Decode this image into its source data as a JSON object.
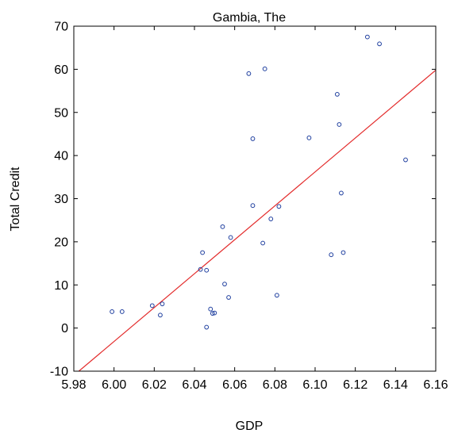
{
  "chart_data": {
    "type": "scatter",
    "title": "Gambia, The",
    "xlabel": "GDP",
    "ylabel": "Total Credit",
    "xlim": [
      5.98,
      6.16
    ],
    "ylim": [
      -10,
      70
    ],
    "x_ticks": [
      5.98,
      6.0,
      6.02,
      6.04,
      6.06,
      6.08,
      6.1,
      6.12,
      6.14,
      6.16
    ],
    "x_tick_labels": [
      "5.98",
      "6.00",
      "6.02",
      "6.04",
      "6.06",
      "6.08",
      "6.10",
      "6.12",
      "6.14",
      "6.16"
    ],
    "y_ticks": [
      -10,
      0,
      10,
      20,
      30,
      40,
      50,
      60,
      70
    ],
    "y_tick_labels": [
      "-10",
      "0",
      "10",
      "20",
      "30",
      "40",
      "50",
      "60",
      "70"
    ],
    "grid": false,
    "series": [
      {
        "type": "scatter",
        "color": "#1f3f9f",
        "x": [
          5.999,
          6.004,
          6.019,
          6.023,
          6.024,
          6.043,
          6.044,
          6.046,
          6.046,
          6.048,
          6.049,
          6.05,
          6.054,
          6.055,
          6.057,
          6.058,
          6.067,
          6.069,
          6.069,
          6.074,
          6.075,
          6.078,
          6.081,
          6.082,
          6.097,
          6.108,
          6.111,
          6.112,
          6.113,
          6.114,
          6.126,
          6.132,
          6.145
        ],
        "y": [
          3.8,
          3.8,
          5.2,
          3.0,
          5.6,
          13.6,
          17.5,
          13.4,
          0.2,
          4.4,
          3.4,
          3.5,
          23.5,
          10.2,
          7.1,
          21.0,
          59.0,
          28.4,
          43.9,
          19.7,
          60.1,
          25.3,
          7.6,
          28.2,
          44.1,
          17.0,
          54.2,
          47.2,
          31.3,
          17.5,
          67.5,
          65.9,
          39.0
        ]
      },
      {
        "type": "line",
        "color": "#e32b2b",
        "x": [
          5.9825,
          6.16
        ],
        "y": [
          -10,
          59.8
        ]
      }
    ]
  }
}
